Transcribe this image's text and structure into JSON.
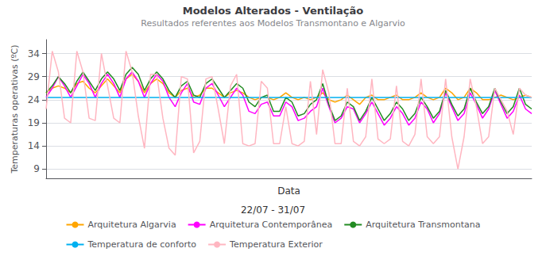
{
  "chart_data": {
    "type": "line",
    "title": "Modelos Alterados - Ventilação",
    "subtitle": "Resultados referentes aos Modelos Transmontano e Algarvio",
    "xlabel": "Data",
    "annotations": [
      "22/07 - 31/07"
    ],
    "ylabel": "Temperaturas operativas (ºC)",
    "categories": [
      null,
      null,
      null,
      null,
      null,
      null,
      null,
      null,
      null,
      null,
      null,
      null,
      null,
      null,
      null,
      null,
      null,
      null,
      null,
      null,
      null,
      null,
      null,
      null,
      null,
      null,
      null,
      null,
      null,
      null,
      null,
      null,
      null,
      null,
      null,
      null,
      null,
      null,
      null,
      null,
      null,
      null,
      null,
      null,
      null,
      null,
      null,
      null,
      null,
      null,
      null,
      null,
      null,
      null,
      null,
      null,
      null,
      null,
      null,
      null,
      null,
      null,
      null,
      null,
      null,
      null,
      null,
      null,
      null,
      null,
      null,
      null,
      null,
      null,
      null,
      null,
      null,
      null,
      null,
      null
    ],
    "ylim": [
      7,
      37
    ],
    "yticks": [
      9,
      14,
      19,
      24,
      29,
      34
    ],
    "grid": true,
    "legend": "bottom",
    "tick_labels": "y",
    "series": [
      {
        "name": "Arquitetura Algarvia",
        "color": "#FFA500",
        "values": [
          25.5,
          26.5,
          27.0,
          26.5,
          25.5,
          27.5,
          28.0,
          26.5,
          25.5,
          27.0,
          28.5,
          27.0,
          25.5,
          28.5,
          29.5,
          28.0,
          25.5,
          27.5,
          28.5,
          27.5,
          25.5,
          24.5,
          26.0,
          26.5,
          24.5,
          25.0,
          26.5,
          26.5,
          25.5,
          24.5,
          25.5,
          26.0,
          25.5,
          24.5,
          24.0,
          24.5,
          24.5,
          24.0,
          24.5,
          25.5,
          24.5,
          24.0,
          24.5,
          24.0,
          24.5,
          25.5,
          24.0,
          23.5,
          24.0,
          25.0,
          24.0,
          23.0,
          24.5,
          25.0,
          24.0,
          24.0,
          24.5,
          25.0,
          24.0,
          24.0,
          24.5,
          25.5,
          24.5,
          24.0,
          24.5,
          26.5,
          25.5,
          24.0,
          24.5,
          26.5,
          25.5,
          24.0,
          24.0,
          24.5,
          25.0,
          24.5,
          24.0,
          24.5,
          25.0,
          24.5
        ]
      },
      {
        "name": "Arquitetura Contemporânea",
        "color": "#FF00FF",
        "values": [
          24.5,
          26.5,
          29.0,
          27.0,
          24.5,
          27.0,
          29.5,
          27.5,
          24.5,
          27.5,
          29.5,
          27.5,
          24.5,
          28.5,
          30.0,
          28.0,
          24.5,
          27.5,
          29.5,
          28.0,
          24.5,
          22.5,
          25.5,
          27.5,
          23.5,
          23.0,
          26.5,
          27.5,
          25.0,
          22.5,
          24.5,
          26.5,
          25.0,
          21.5,
          21.0,
          23.0,
          23.5,
          20.5,
          20.5,
          23.5,
          22.5,
          19.5,
          20.0,
          21.5,
          22.5,
          26.5,
          22.5,
          19.0,
          20.0,
          22.5,
          22.0,
          19.0,
          21.0,
          23.5,
          21.0,
          18.5,
          20.0,
          22.5,
          21.0,
          18.5,
          20.0,
          23.5,
          22.0,
          19.0,
          21.0,
          25.5,
          22.5,
          19.5,
          21.0,
          25.5,
          23.0,
          20.0,
          22.0,
          26.0,
          23.0,
          20.0,
          21.5,
          25.0,
          22.0,
          21.0
        ]
      },
      {
        "name": "Arquitetura Transmontana",
        "color": "#228B22",
        "values": [
          25.5,
          27.0,
          29.0,
          27.5,
          25.5,
          28.0,
          30.0,
          28.0,
          26.0,
          28.5,
          30.0,
          28.5,
          26.0,
          29.5,
          31.0,
          29.5,
          26.0,
          28.5,
          30.0,
          28.5,
          26.0,
          24.5,
          27.0,
          28.0,
          25.0,
          24.5,
          27.5,
          28.5,
          26.5,
          24.5,
          26.0,
          27.5,
          26.5,
          23.5,
          22.5,
          24.5,
          25.0,
          21.5,
          21.5,
          24.5,
          23.5,
          20.5,
          21.0,
          23.0,
          24.0,
          27.5,
          23.0,
          19.5,
          20.5,
          23.5,
          22.5,
          19.5,
          21.5,
          24.5,
          22.0,
          19.5,
          21.0,
          23.5,
          22.0,
          19.5,
          21.0,
          24.5,
          22.5,
          20.0,
          21.5,
          26.0,
          23.0,
          20.5,
          22.0,
          26.5,
          23.5,
          21.0,
          22.5,
          26.5,
          23.5,
          21.0,
          22.5,
          26.5,
          23.0,
          22.0
        ]
      },
      {
        "name": "Temperatura de conforto",
        "color": "#00B0F0",
        "values": [
          24.5,
          24.5,
          24.5,
          24.5,
          24.5,
          24.5,
          24.5,
          24.5,
          24.5,
          24.5,
          24.5,
          24.5,
          24.5,
          24.5,
          24.5,
          24.5,
          24.5,
          24.5,
          24.5,
          24.5,
          24.5,
          24.5,
          24.5,
          24.5,
          24.5,
          24.5,
          24.5,
          24.5,
          24.5,
          24.5,
          24.5,
          24.5,
          24.5,
          24.5,
          24.5,
          24.5,
          24.5,
          24.5,
          24.5,
          24.5,
          24.5,
          24.5,
          24.5,
          24.5,
          24.5,
          24.5,
          24.5,
          24.5,
          24.5,
          24.5,
          24.5,
          24.5,
          24.5,
          24.5,
          24.5,
          24.5,
          24.5,
          24.5,
          24.5,
          24.5,
          24.5,
          24.5,
          24.5,
          24.5,
          24.5,
          24.5,
          24.5,
          24.5,
          24.5,
          24.5,
          24.5,
          24.5,
          24.5,
          24.5,
          24.5,
          24.5,
          24.5,
          24.5,
          24.5,
          24.5
        ]
      },
      {
        "name": "Temperatura Exterior",
        "color": "#FFB6C1",
        "values": [
          22.0,
          34.5,
          30.0,
          20.0,
          19.0,
          34.5,
          30.0,
          20.0,
          19.5,
          34.0,
          27.0,
          20.0,
          19.0,
          34.5,
          30.0,
          20.5,
          13.5,
          29.5,
          29.5,
          20.0,
          13.5,
          12.0,
          29.0,
          28.5,
          12.5,
          15.0,
          28.5,
          29.0,
          22.0,
          14.5,
          27.0,
          29.5,
          14.5,
          14.0,
          14.5,
          28.0,
          26.5,
          14.5,
          14.5,
          22.5,
          14.5,
          14.0,
          15.0,
          28.0,
          16.5,
          30.5,
          25.5,
          14.5,
          14.5,
          26.5,
          15.0,
          14.0,
          16.0,
          28.5,
          15.5,
          14.5,
          15.5,
          27.0,
          15.0,
          14.0,
          16.5,
          28.5,
          16.0,
          14.5,
          16.0,
          28.5,
          16.0,
          9.0,
          16.0,
          28.5,
          22.5,
          14.5,
          16.0,
          26.5,
          24.0,
          21.5,
          16.5,
          26.5,
          25.0,
          24.5
        ]
      }
    ]
  }
}
